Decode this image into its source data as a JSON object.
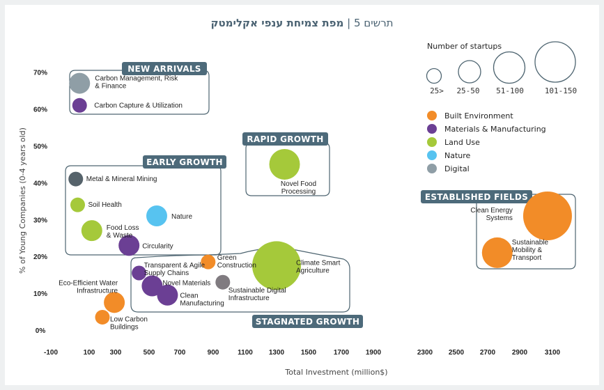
{
  "chart_data": {
    "type": "scatter",
    "subtype": "bubble",
    "title_prefix": "תרשים 5",
    "title_separator": "|",
    "title_main": "מפת צמיחת ענפי אקלימטק",
    "xlabel": "Total Investment  (million$)",
    "ylabel": "% of Young Companies (0-4 years old)",
    "x_ticks": [
      "-100",
      "100",
      "300",
      "500",
      "700",
      "900",
      "1100",
      "1300",
      "1500",
      "1700",
      "1900",
      "2300",
      "2500",
      "2700",
      "2900",
      "3100"
    ],
    "y_ticks": [
      "0%",
      "10%",
      "20%",
      "30%",
      "40%",
      "50%",
      "60%",
      "70%"
    ],
    "xlim": [
      -100,
      3100
    ],
    "ylim": [
      0,
      70
    ],
    "x_axis_break": [
      1900,
      2300
    ],
    "grid": false,
    "size_legend": {
      "title": "Number of startups",
      "bins": [
        "25>",
        "25-50",
        "51-100",
        "101-150"
      ]
    },
    "categories": [
      {
        "name": "Built Environment",
        "color": "#f28c28"
      },
      {
        "name": "Materials & Manufacturing",
        "color": "#6b3f94"
      },
      {
        "name": "Land Use",
        "color": "#a5c93a"
      },
      {
        "name": "Nature",
        "color": "#57c3f0"
      },
      {
        "name": "Digital",
        "color": "#8f9ea6"
      }
    ],
    "groups": [
      {
        "name": "NEW ARRIVALS"
      },
      {
        "name": "EARLY GROWTH"
      },
      {
        "name": "RAPID GROWTH"
      },
      {
        "name": "ESTABLISHED FIELDS"
      },
      {
        "name": "STAGNATED GROWTH"
      }
    ],
    "points": [
      {
        "label": "Carbon Management, Risk & Finance",
        "label_lines": [
          "Carbon Management, Risk",
          "& Finance"
        ],
        "category": "Digital",
        "group": "NEW ARRIVALS",
        "x": 50,
        "y": 67,
        "size_bin": "25-50",
        "color": "#8f9ea6"
      },
      {
        "label": "Carbon Capture & Utilization",
        "label_lines": [
          "Carbon Capture & Utilization"
        ],
        "category": "Materials & Manufacturing",
        "group": "NEW ARRIVALS",
        "x": 50,
        "y": 61,
        "size_bin": "25>",
        "color": "#6b3f94"
      },
      {
        "label": "Metal & Mineral Mining",
        "label_lines": [
          "Metal & Mineral Mining"
        ],
        "category": "Digital",
        "group": "EARLY GROWTH",
        "x": 30,
        "y": 41,
        "size_bin": "25>",
        "color": "#56636b"
      },
      {
        "label": "Soil Health",
        "label_lines": [
          "Soil Health"
        ],
        "category": "Land Use",
        "group": "EARLY GROWTH",
        "x": 40,
        "y": 34,
        "size_bin": "25>",
        "color": "#a5c93a"
      },
      {
        "label": "Food Loss & Waste",
        "label_lines": [
          "Food Loss",
          "& Waste"
        ],
        "category": "Land Use",
        "group": "EARLY GROWTH",
        "x": 120,
        "y": 27,
        "size_bin": "25-50",
        "color": "#a5c93a"
      },
      {
        "label": "Nature",
        "label_lines": [
          "Nature"
        ],
        "category": "Nature",
        "group": "EARLY GROWTH",
        "x": 550,
        "y": 31,
        "size_bin": "25-50",
        "color": "#57c3f0"
      },
      {
        "label": "Circularity",
        "label_lines": [
          "Circularity"
        ],
        "category": "Materials & Manufacturing",
        "group": "EARLY GROWTH",
        "x": 380,
        "y": 23,
        "size_bin": "25-50",
        "color": "#6b3f94"
      },
      {
        "label": "Novel Food Processing",
        "label_lines": [
          "Novel Food",
          "Processing"
        ],
        "category": "Land Use",
        "group": "RAPID GROWTH",
        "x": 1350,
        "y": 45,
        "size_bin": "51-100",
        "color": "#a5c93a"
      },
      {
        "label": "Clean Energy Systems",
        "label_lines": [
          "Clean Energy",
          "Systems"
        ],
        "category": "Built Environment",
        "group": "ESTABLISHED FIELDS",
        "x": 3070,
        "y": 31,
        "size_bin": "101-150",
        "color": "#f28c28"
      },
      {
        "label": "Sustainable Mobility & Transport",
        "label_lines": [
          "Sustainable",
          "Mobility &",
          "Transport"
        ],
        "category": "Built Environment",
        "group": "ESTABLISHED FIELDS",
        "x": 2760,
        "y": 21,
        "size_bin": "51-100",
        "color": "#f28c28"
      },
      {
        "label": "Transparent & Agile Supply Chains",
        "label_lines": [
          "Transparent & Agile",
          "Supply Chains"
        ],
        "category": "Materials & Manufacturing",
        "group": "STAGNATED GROWTH",
        "x": 440,
        "y": 15.5,
        "size_bin": "25>",
        "color": "#6b3f94"
      },
      {
        "label": "Green Construction",
        "label_lines": [
          "Green",
          "Construction"
        ],
        "category": "Built Environment",
        "group": "STAGNATED GROWTH",
        "x": 870,
        "y": 18.5,
        "size_bin": "25>",
        "color": "#f28c28"
      },
      {
        "label": "Climate Smart Agriculture",
        "label_lines": [
          "Climate Smart",
          "Agriculture"
        ],
        "category": "Land Use",
        "group": "STAGNATED GROWTH",
        "x": 1300,
        "y": 17.5,
        "size_bin": "101-150",
        "color": "#a5c93a"
      },
      {
        "label": "Novel Materials",
        "label_lines": [
          "Novel Materials"
        ],
        "category": "Materials & Manufacturing",
        "group": "STAGNATED GROWTH",
        "x": 520,
        "y": 12,
        "size_bin": "25-50",
        "color": "#6b3f94"
      },
      {
        "label": "Sustainable Digital Infrastructure",
        "label_lines": [
          "Sustainable Digital",
          "Infrastructure"
        ],
        "category": "Digital",
        "group": "STAGNATED GROWTH",
        "x": 960,
        "y": 13,
        "size_bin": "25>",
        "color": "#807b80"
      },
      {
        "label": "Clean Manufacturing",
        "label_lines": [
          "Clean",
          "Manufacturing"
        ],
        "category": "Materials & Manufacturing",
        "group": "STAGNATED GROWTH",
        "x": 620,
        "y": 9.5,
        "size_bin": "25-50",
        "color": "#6b3f94"
      },
      {
        "label": "Eco-Efficient Water Infrastructure",
        "label_lines": [
          "Eco-Efficient Water",
          "Infrastructure"
        ],
        "category": "Built Environment",
        "group": "",
        "x": 290,
        "y": 7.5,
        "size_bin": "25-50",
        "color": "#f28c28"
      },
      {
        "label": "Low Carbon Buildings",
        "label_lines": [
          "Low Carbon",
          "Buildings"
        ],
        "category": "Built Environment",
        "group": "",
        "x": 200,
        "y": 3.5,
        "size_bin": "25>",
        "color": "#f28c28"
      }
    ]
  }
}
